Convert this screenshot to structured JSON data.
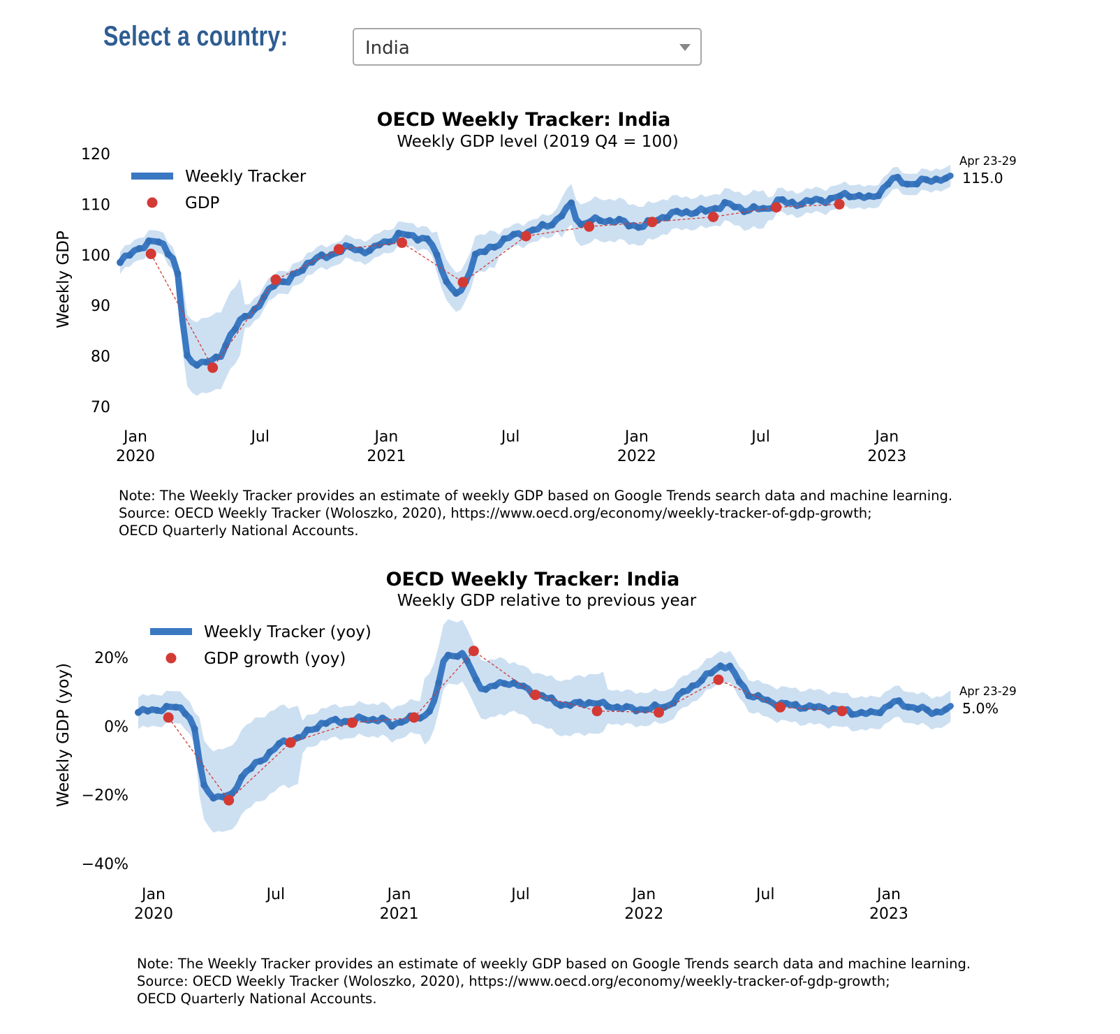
{
  "selector": {
    "label": "Select a country:",
    "selected": "India"
  },
  "colors": {
    "tracker": "#3a78c2",
    "band": "#bcd6ee",
    "gdp": "#d33a35",
    "label_blue": "#2e5d92"
  },
  "chart_data": [
    {
      "type": "line",
      "title": "OECD Weekly Tracker: India",
      "subtitle": "Weekly GDP level (2019 Q4 = 100)",
      "ylabel": "Weekly GDP",
      "ylim": [
        70,
        120
      ],
      "yticks": [
        70,
        80,
        90,
        100,
        110,
        120
      ],
      "ytick_labels": [
        "70",
        "80",
        "90",
        "100",
        "110",
        "120"
      ],
      "xlim": [
        "2020-01-01",
        "2023-05-07"
      ],
      "xticks": [
        {
          "date": "2020-01-01",
          "label": [
            "Jan",
            "2020"
          ]
        },
        {
          "date": "2020-07-01",
          "label": [
            "Jul"
          ]
        },
        {
          "date": "2021-01-01",
          "label": [
            "Jan",
            "2021"
          ]
        },
        {
          "date": "2021-07-01",
          "label": [
            "Jul"
          ]
        },
        {
          "date": "2022-01-01",
          "label": [
            "Jan",
            "2022"
          ]
        },
        {
          "date": "2022-07-01",
          "label": [
            "Jul"
          ]
        },
        {
          "date": "2023-01-01",
          "label": [
            "Jan",
            "2023"
          ]
        }
      ],
      "legend": {
        "position": "top-left",
        "tracker": "Weekly Tracker",
        "gdp": "GDP"
      },
      "last_label": {
        "period": "Apr 23-29",
        "value": "115.0"
      },
      "series": [
        {
          "name": "Weekly Tracker",
          "x": [
            "2020-01-01",
            "2020-01-29",
            "2020-02-15",
            "2020-03-01",
            "2020-03-10",
            "2020-03-20",
            "2020-03-28",
            "2020-04-05",
            "2020-04-15",
            "2020-05-01",
            "2020-05-15",
            "2020-05-25",
            "2020-06-10",
            "2020-07-01",
            "2020-07-20",
            "2020-08-01",
            "2020-08-15",
            "2020-09-01",
            "2020-10-01",
            "2020-11-01",
            "2020-12-01",
            "2021-01-01",
            "2021-01-15",
            "2021-02-01",
            "2021-02-15",
            "2021-03-01",
            "2021-03-20",
            "2021-04-01",
            "2021-04-15",
            "2021-05-01",
            "2021-05-15",
            "2021-06-01",
            "2021-06-15",
            "2021-07-01",
            "2021-08-01",
            "2021-09-01",
            "2021-10-01",
            "2021-10-20",
            "2021-11-01",
            "2021-12-01",
            "2022-01-01",
            "2022-02-01",
            "2022-03-01",
            "2022-04-01",
            "2022-05-01",
            "2022-06-01",
            "2022-07-01",
            "2022-08-01",
            "2022-08-20",
            "2022-09-01",
            "2022-10-01",
            "2022-11-01",
            "2022-12-01",
            "2023-01-01",
            "2023-02-01",
            "2023-03-01",
            "2023-04-01",
            "2023-04-26"
          ],
          "values": [
            98.5,
            101.5,
            102.5,
            102.5,
            101,
            99,
            94,
            80,
            79,
            78.5,
            79,
            80,
            84,
            88,
            89.5,
            92,
            95,
            94.5,
            98.5,
            100,
            101.5,
            100.5,
            102.5,
            103,
            104,
            104,
            103,
            102,
            97,
            92,
            93,
            100,
            100.5,
            102,
            104,
            105,
            107,
            110,
            106,
            107,
            106.5,
            105.5,
            107.5,
            108.5,
            108.5,
            110,
            109,
            109,
            111,
            110,
            110.5,
            111,
            112,
            111,
            115,
            114,
            115,
            115
          ]
        },
        {
          "name": "GDP",
          "x": [
            "2020-02-15",
            "2020-05-15",
            "2020-08-15",
            "2020-11-15",
            "2021-02-15",
            "2021-05-15",
            "2021-08-15",
            "2021-11-15",
            "2022-02-15",
            "2022-05-15",
            "2022-08-15",
            "2022-11-15"
          ],
          "values": [
            100.2,
            77.7,
            95.1,
            101.1,
            102.4,
            94.6,
            103.7,
            105.6,
            106.5,
            107.5,
            109.4,
            110.0
          ]
        }
      ]
    },
    {
      "type": "line",
      "title": "OECD Weekly Tracker: India",
      "subtitle": "Weekly GDP relative to previous year",
      "ylabel": "Weekly GDP (yoy)",
      "ylim": [
        -40,
        32
      ],
      "yticks": [
        -40,
        -20,
        0,
        20
      ],
      "ytick_labels": [
        "−40%",
        "−20%",
        "0%",
        "20%"
      ],
      "xlim": [
        "2020-01-01",
        "2023-05-07"
      ],
      "xticks": [
        {
          "date": "2020-01-01",
          "label": [
            "Jan",
            "2020"
          ]
        },
        {
          "date": "2020-07-01",
          "label": [
            "Jul"
          ]
        },
        {
          "date": "2021-01-01",
          "label": [
            "Jan",
            "2021"
          ]
        },
        {
          "date": "2021-07-01",
          "label": [
            "Jul"
          ]
        },
        {
          "date": "2022-01-01",
          "label": [
            "Jan",
            "2022"
          ]
        },
        {
          "date": "2022-07-01",
          "label": [
            "Jul"
          ]
        },
        {
          "date": "2023-01-01",
          "label": [
            "Jan",
            "2023"
          ]
        }
      ],
      "legend": {
        "position": "top-left",
        "tracker": "Weekly Tracker (yoy)",
        "gdp": "GDP growth (yoy)"
      },
      "last_label": {
        "period": "Apr 23-29",
        "value": "5.0%"
      },
      "series": [
        {
          "name": "Weekly Tracker (yoy)",
          "x": [
            "2020-01-01",
            "2020-02-01",
            "2020-03-01",
            "2020-03-15",
            "2020-03-28",
            "2020-04-05",
            "2020-04-20",
            "2020-05-01",
            "2020-05-20",
            "2020-06-01",
            "2020-07-01",
            "2020-08-01",
            "2020-09-01",
            "2020-10-01",
            "2020-11-01",
            "2020-12-01",
            "2021-01-01",
            "2021-01-10",
            "2021-02-01",
            "2021-03-01",
            "2021-03-20",
            "2021-04-01",
            "2021-04-15",
            "2021-05-01",
            "2021-05-20",
            "2021-06-01",
            "2021-07-01",
            "2021-08-01",
            "2021-09-01",
            "2021-10-01",
            "2021-11-01",
            "2021-12-01",
            "2022-01-01",
            "2022-02-01",
            "2022-03-01",
            "2022-04-01",
            "2022-05-01",
            "2022-05-20",
            "2022-06-01",
            "2022-06-15",
            "2022-07-01",
            "2022-08-01",
            "2022-09-01",
            "2022-10-01",
            "2022-11-01",
            "2022-12-01",
            "2023-01-01",
            "2023-02-01",
            "2023-03-01",
            "2023-04-01",
            "2023-04-26"
          ],
          "values": [
            4,
            5,
            5.5,
            4,
            -3,
            -17,
            -20,
            -21,
            -20,
            -15,
            -10,
            -5,
            -3,
            1,
            1.5,
            2,
            2,
            0,
            2,
            2.5,
            8,
            20,
            21,
            20.5,
            13,
            10.5,
            13,
            11,
            8,
            6,
            7,
            6,
            5,
            5,
            6,
            11,
            15,
            18,
            17,
            13,
            9,
            7,
            6,
            5.5,
            5,
            4,
            3.5,
            7,
            5.5,
            4,
            5
          ]
        },
        {
          "name": "GDP growth (yoy)",
          "x": [
            "2020-02-15",
            "2020-05-15",
            "2020-08-15",
            "2020-11-15",
            "2021-02-15",
            "2021-05-15",
            "2021-08-15",
            "2021-11-15",
            "2022-02-15",
            "2022-05-15",
            "2022-08-15",
            "2022-11-15"
          ],
          "values": [
            2.5,
            -21.6,
            -4.8,
            1.0,
            2.5,
            21.9,
            9.1,
            4.4,
            4.0,
            13.5,
            5.5,
            4.4
          ]
        }
      ]
    }
  ],
  "notes": [
    {
      "lines": [
        "Note: The Weekly Tracker provides an estimate of weekly GDP based on Google Trends search data and machine learning.",
        "Source: OECD Weekly Tracker (Woloszko, 2020), https://www.oecd.org/economy/weekly-tracker-of-gdp-growth;",
        "OECD Quarterly National Accounts."
      ]
    },
    {
      "lines": [
        "Note: The Weekly Tracker provides an estimate of weekly GDP based on Google Trends search data and machine learning.",
        "Source: OECD Weekly Tracker (Woloszko, 2020), https://www.oecd.org/economy/weekly-tracker-of-gdp-growth;",
        "OECD Quarterly National Accounts."
      ]
    }
  ]
}
